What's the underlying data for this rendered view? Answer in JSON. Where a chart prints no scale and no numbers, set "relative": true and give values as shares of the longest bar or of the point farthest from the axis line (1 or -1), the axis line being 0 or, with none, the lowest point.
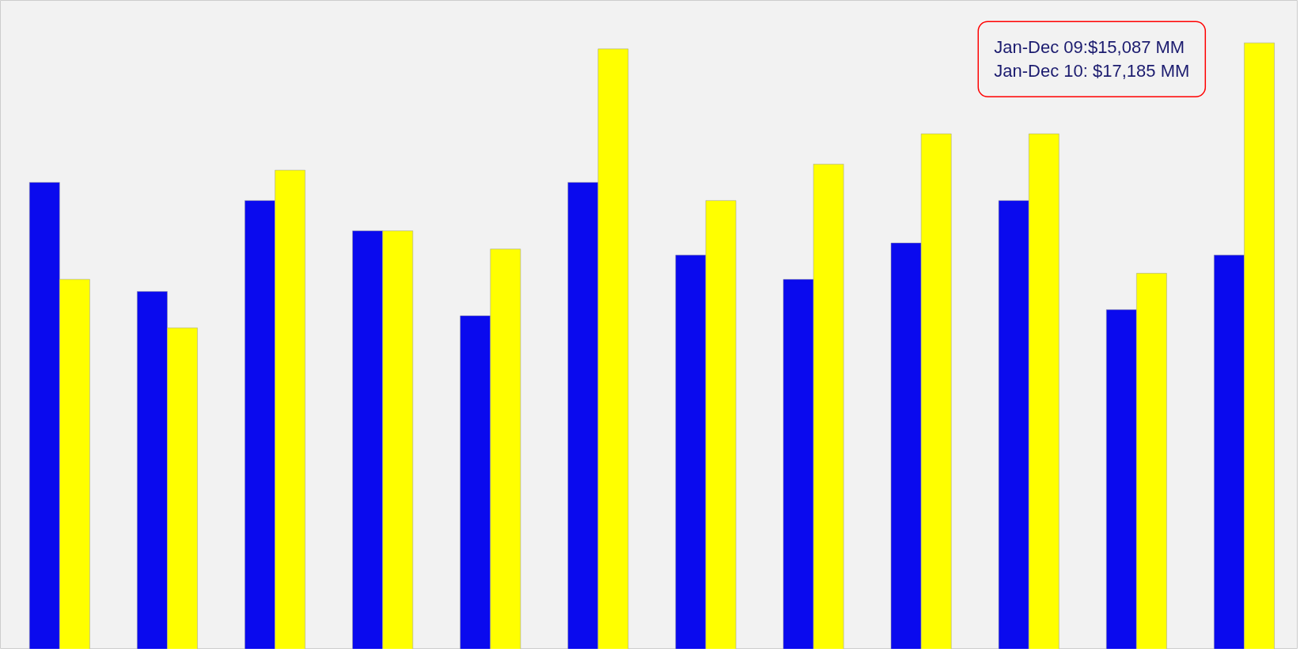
{
  "chart_data": {
    "type": "bar",
    "relative": true,
    "categories": [
      null,
      null,
      null,
      null,
      null,
      null,
      null,
      null,
      null,
      null,
      null,
      null
    ],
    "series": [
      {
        "color": "#0a0aee",
        "values": [
          0.77,
          0.59,
          0.74,
          0.69,
          0.55,
          0.77,
          0.65,
          0.61,
          0.67,
          0.74,
          0.56,
          0.65
        ]
      },
      {
        "color": "#ffff00",
        "values": [
          0.61,
          0.53,
          0.79,
          0.69,
          0.66,
          0.99,
          0.74,
          0.8,
          0.85,
          0.85,
          0.62,
          1.0
        ]
      }
    ],
    "annotations": [
      "Jan-Dec 09:$15,087 MM",
      "Jan-Dec 10: $17,185 MM"
    ],
    "grid": false
  }
}
